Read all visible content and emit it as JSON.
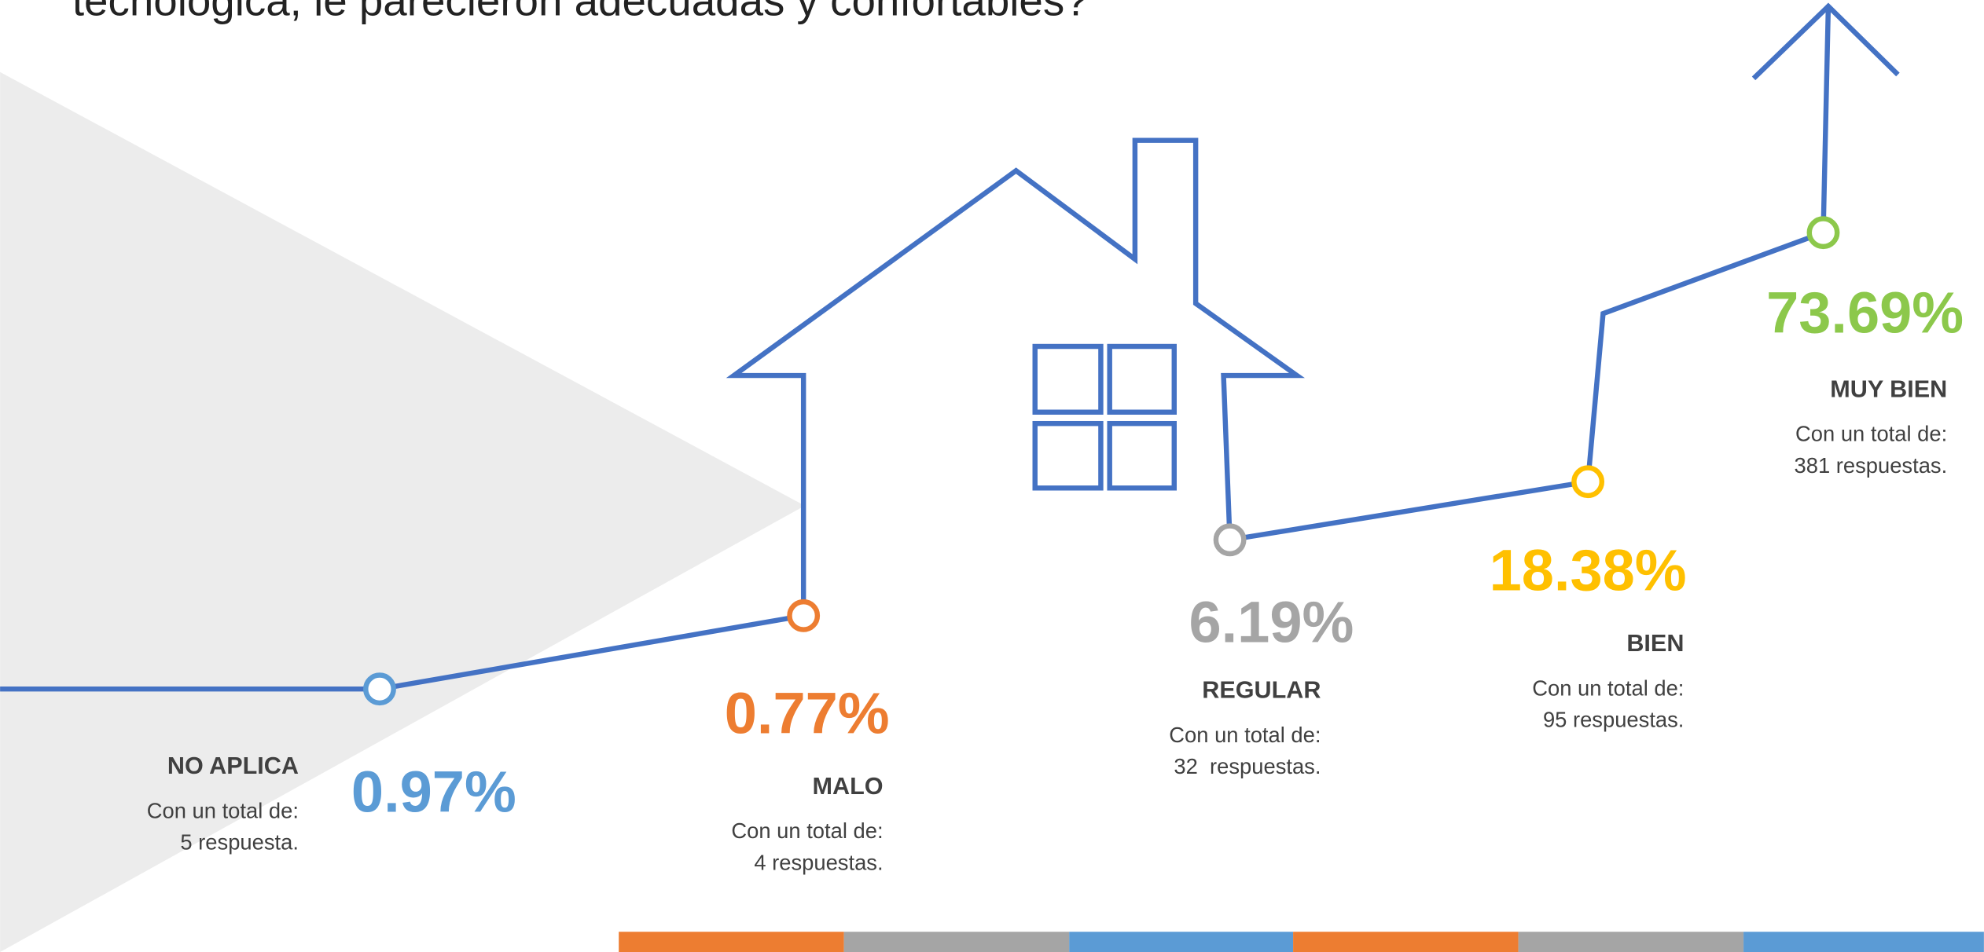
{
  "title": "tecnológica, le parecieron adecuadas y confortables?",
  "items": [
    {
      "percent": "0.97%",
      "label": "NO APLICA",
      "total_text": "Con un total de:",
      "count_text": "5 respuesta.",
      "color": "#5b9bd5"
    },
    {
      "percent": "0.77%",
      "label": "MALO",
      "total_text": "Con un total de:",
      "count_text": "4 respuestas.",
      "color": "#ed7d31"
    },
    {
      "percent": "6.19%",
      "label": "REGULAR",
      "total_text": "Con un total de:",
      "count_text": "32  respuestas.",
      "color": "#a5a5a5"
    },
    {
      "percent": "18.38%",
      "label": "BIEN",
      "total_text": "Con un total de:",
      "count_text": "95 respuestas.",
      "color": "#ffc000"
    },
    {
      "percent": "73.69%",
      "label": "MUY BIEN",
      "total_text": "Con un total de:",
      "count_text": "381 respuestas.",
      "color": "#8cc84b"
    }
  ]
}
